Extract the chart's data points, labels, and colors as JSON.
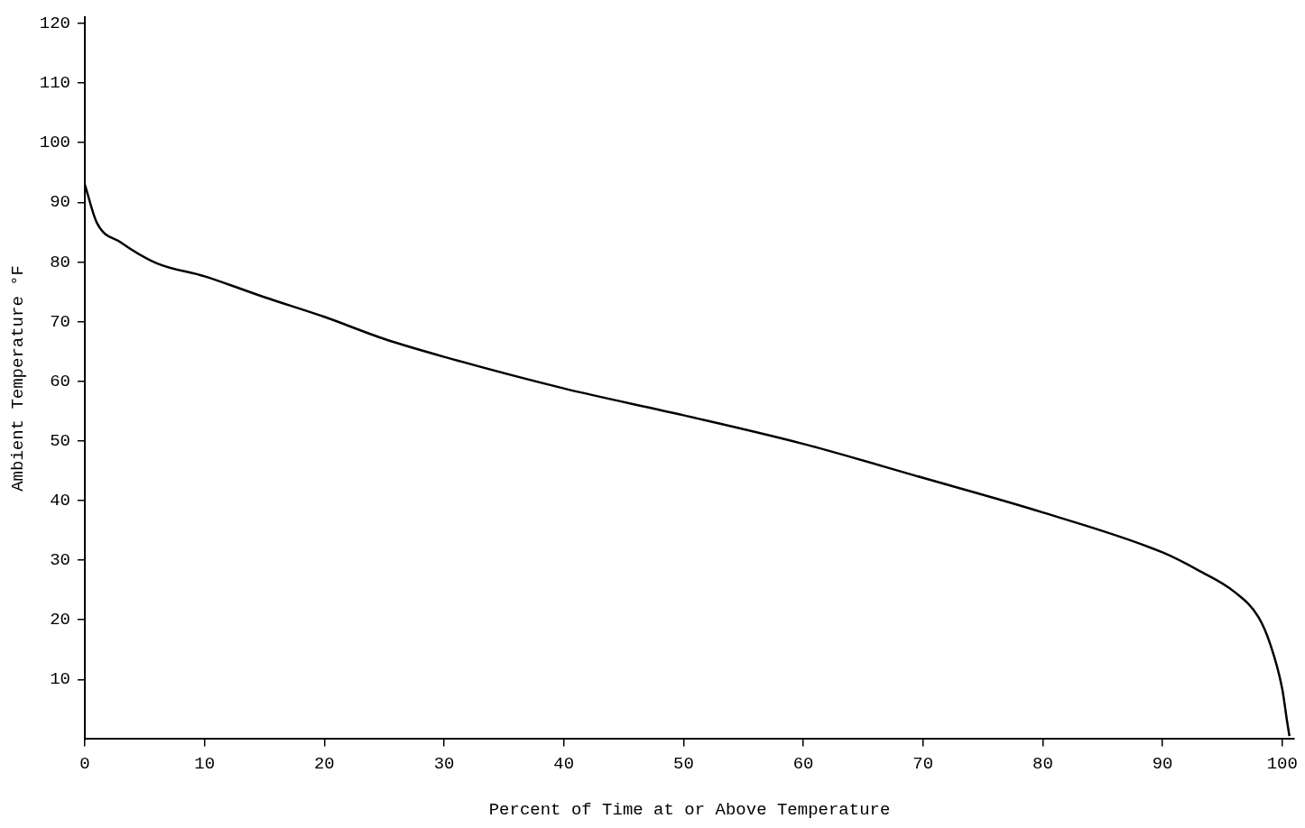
{
  "chart_data": {
    "type": "line",
    "xlabel": "Percent of Time at or Above Temperature",
    "ylabel": "Ambient Temperature °F",
    "x": [
      0,
      1,
      3,
      6,
      10,
      15,
      20,
      25,
      30,
      40,
      50,
      60,
      70,
      80,
      90,
      93,
      96,
      98,
      99,
      100,
      100.4,
      100.6
    ],
    "series": [
      {
        "color": "#000000",
        "values": [
          93,
          86.6,
          83.3,
          79.8,
          77.6,
          74.1,
          70.8,
          67.1,
          64.1,
          58.8,
          54.3,
          49.5,
          43.8,
          38,
          31.3,
          28.3,
          24.7,
          20.5,
          15.9,
          8.4,
          3,
          0.5
        ]
      }
    ],
    "xlim": [
      0,
      101
    ],
    "ylim": [
      0,
      121
    ],
    "xticks": [
      0,
      10,
      20,
      30,
      40,
      50,
      60,
      70,
      80,
      90,
      100
    ],
    "yticks": [
      10,
      20,
      30,
      40,
      50,
      60,
      70,
      80,
      90,
      100,
      110,
      120
    ],
    "grid": false,
    "legend": false,
    "marker": "none",
    "line_style": "solid"
  }
}
